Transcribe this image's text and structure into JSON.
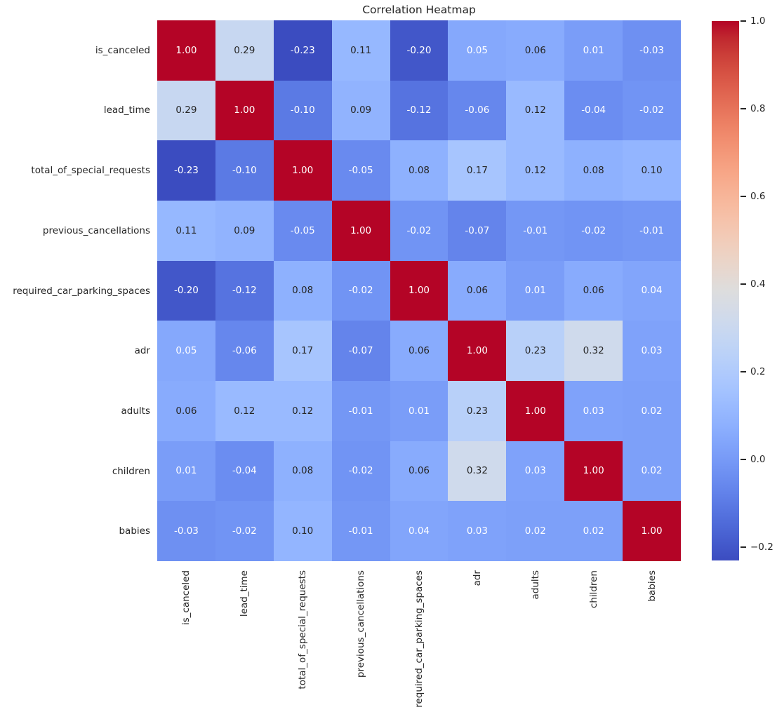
{
  "chart_data": {
    "type": "heatmap",
    "title": "Correlation Heatmap",
    "categories": [
      "is_canceled",
      "lead_time",
      "total_of_special_requests",
      "previous_cancellations",
      "required_car_parking_spaces",
      "adr",
      "adults",
      "children",
      "babies"
    ],
    "matrix": [
      [
        1.0,
        0.29,
        -0.23,
        0.11,
        -0.2,
        0.05,
        0.06,
        0.01,
        -0.03
      ],
      [
        0.29,
        1.0,
        -0.1,
        0.09,
        -0.12,
        -0.06,
        0.12,
        -0.04,
        -0.02
      ],
      [
        -0.23,
        -0.1,
        1.0,
        -0.05,
        0.08,
        0.17,
        0.12,
        0.08,
        0.1
      ],
      [
        0.11,
        0.09,
        -0.05,
        1.0,
        -0.02,
        -0.07,
        -0.01,
        -0.02,
        -0.01
      ],
      [
        -0.2,
        -0.12,
        0.08,
        -0.02,
        1.0,
        0.06,
        0.01,
        0.06,
        0.04
      ],
      [
        0.05,
        -0.06,
        0.17,
        -0.07,
        0.06,
        1.0,
        0.23,
        0.32,
        0.03
      ],
      [
        0.06,
        0.12,
        0.12,
        -0.01,
        0.01,
        0.23,
        1.0,
        0.03,
        0.02
      ],
      [
        0.01,
        -0.04,
        0.08,
        -0.02,
        0.06,
        0.32,
        0.03,
        1.0,
        0.02
      ],
      [
        -0.03,
        -0.02,
        0.1,
        -0.01,
        0.04,
        0.03,
        0.02,
        0.02,
        1.0
      ]
    ],
    "vmin": -0.23,
    "vmax": 1.0,
    "colormap": "coolwarm",
    "colormap_rgb": [
      "#3b4cc0",
      "#445acc",
      "#4d68d7",
      "#5775e1",
      "#6282ea",
      "#6c8ef1",
      "#779af7",
      "#82a5fb",
      "#8db0fe",
      "#98b9ff",
      "#a3c2ff",
      "#aec9fd",
      "#b8d0f9",
      "#c2d5f4",
      "#ccd9ee",
      "#d5dbe6",
      "#dddddd",
      "#e5d8d1",
      "#ecd3c5",
      "#f1ccb9",
      "#f5c4ad",
      "#f7bba0",
      "#f7b194",
      "#f7a687",
      "#f49a7b",
      "#f18d6f",
      "#ec7f63",
      "#e57058",
      "#de604d",
      "#d55042",
      "#cb3e38",
      "#c0282f",
      "#b40426"
    ],
    "annotation_colors": {
      "dark": "#262626",
      "light": "#ffffff"
    },
    "label_color": "#262626",
    "background": "#ffffff",
    "colorbar": {
      "position": "right",
      "tick_values": [
        1.0,
        0.8,
        0.6,
        0.4,
        0.2,
        0.0,
        -0.2
      ],
      "tick_labels": [
        "1.0",
        "0.8",
        "0.6",
        "0.4",
        "0.2",
        "0.0",
        "−0.2"
      ]
    },
    "layout": {
      "x_tick_rotation": 90,
      "grid": false,
      "cell_border": "none"
    }
  }
}
